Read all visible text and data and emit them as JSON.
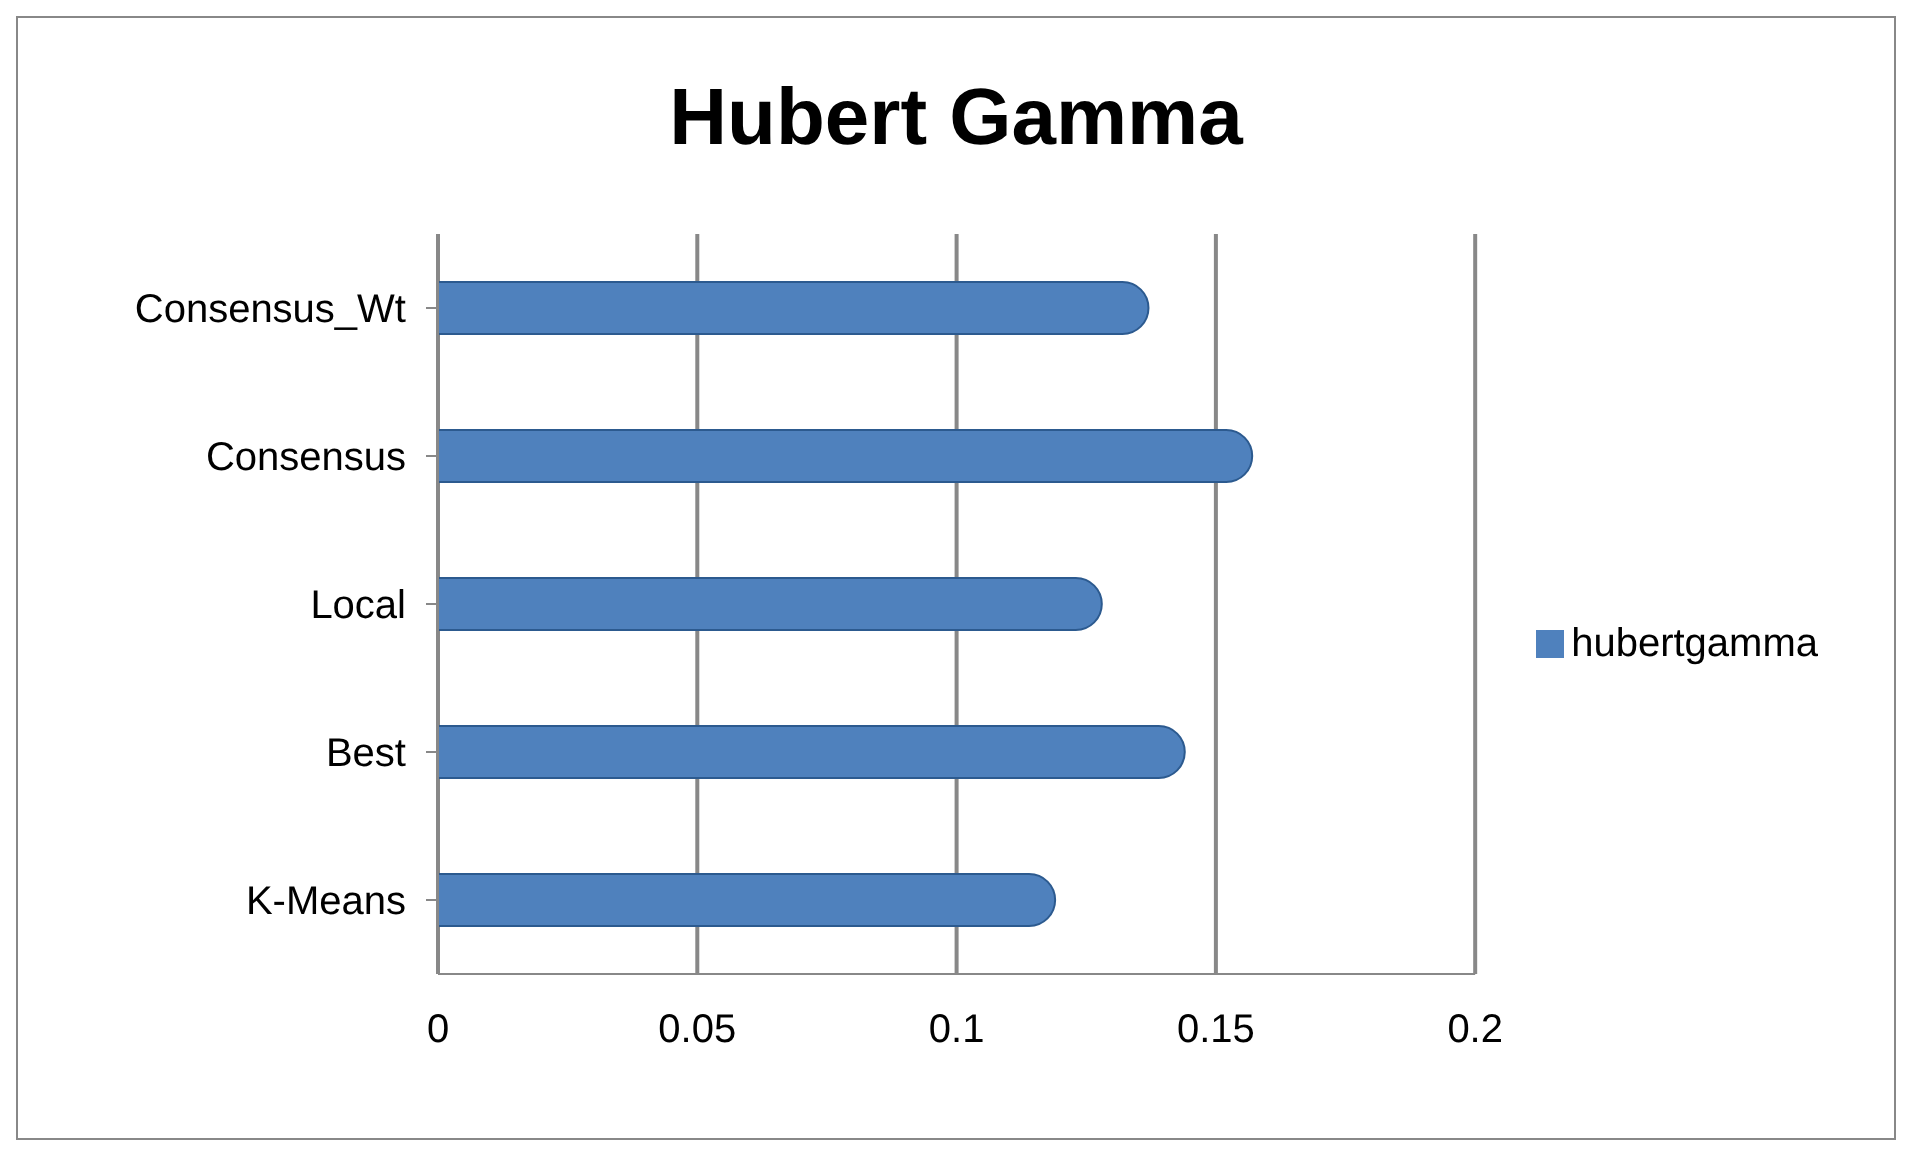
{
  "chart_data": {
    "type": "bar",
    "title": "Hubert Gamma",
    "orientation": "horizontal",
    "categories": [
      "Consensus_Wt",
      "Consensus",
      "Local",
      "Best",
      "K-Means"
    ],
    "series": [
      {
        "name": "hubertgamma",
        "color": "#4f81bd",
        "values": [
          0.137,
          0.157,
          0.128,
          0.144,
          0.119
        ]
      }
    ],
    "xlim": [
      0,
      0.2
    ],
    "xticks": [
      0,
      0.05,
      0.1,
      0.15,
      0.2
    ],
    "grid": "x",
    "legend": "right"
  }
}
